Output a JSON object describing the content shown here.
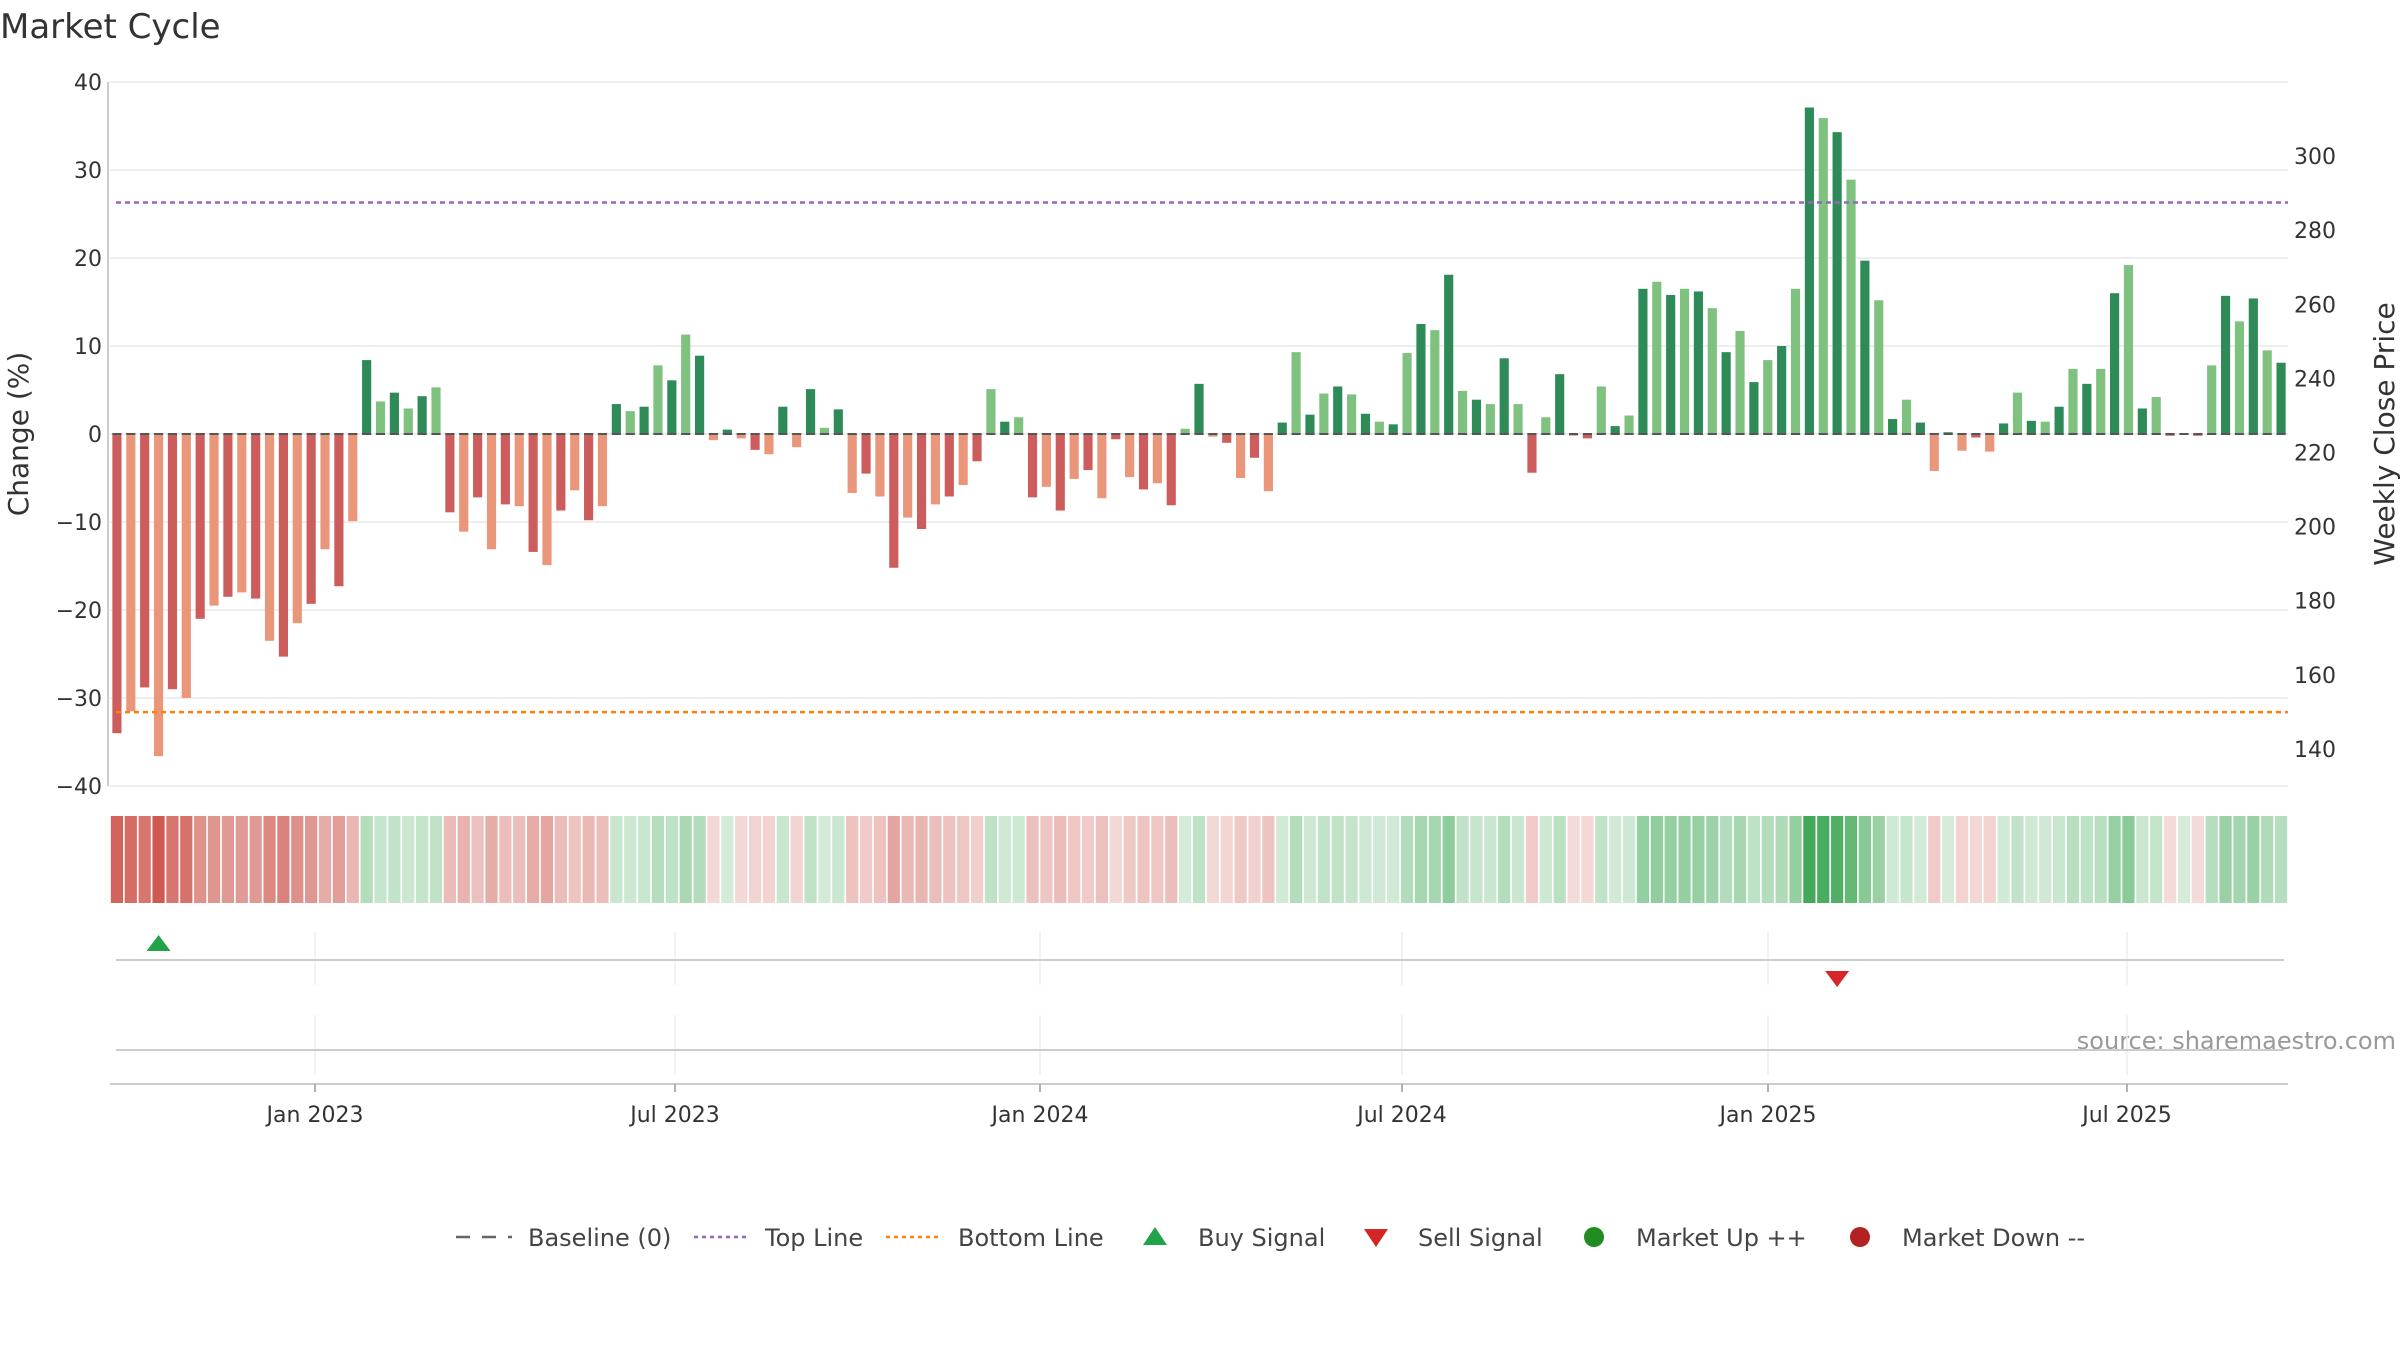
{
  "chart_data": {
    "type": "bar",
    "title": "Market Cycle",
    "ylabel": "Change (%)",
    "y2label": "Weekly Close Price",
    "ylim": [
      -40,
      40
    ],
    "y2lim": [
      130,
      320
    ],
    "yticks": [
      "40",
      "30",
      "20",
      "10",
      "0",
      "−10",
      "−20",
      "−30",
      "−40"
    ],
    "y2ticks": [
      "300",
      "280",
      "260",
      "240",
      "220",
      "200",
      "180",
      "160",
      "140"
    ],
    "xticks": [
      "Jan 2023",
      "Jul 2023",
      "Jan 2024",
      "Jul 2024",
      "Jan 2025",
      "Jul 2025"
    ],
    "top_line": 26.3,
    "bottom_line": -31.6,
    "grid": true,
    "values": [
      -34,
      -31.5,
      -28.8,
      -36.6,
      -29,
      -30,
      -21,
      -19.5,
      -18.5,
      -18,
      -18.7,
      -23.5,
      -25.3,
      -21.5,
      -19.3,
      -13.1,
      -17.3,
      -9.9,
      8.4,
      3.7,
      4.7,
      2.9,
      4.3,
      5.3,
      -8.9,
      -11.1,
      -7.2,
      -13.1,
      -8,
      -8.2,
      -13.4,
      -14.9,
      -8.7,
      -6.4,
      -9.8,
      -8.2,
      3.4,
      2.6,
      3.1,
      7.8,
      6.1,
      11.3,
      8.9,
      -0.7,
      0.5,
      -0.5,
      -1.8,
      -2.3,
      3.1,
      -1.5,
      5.1,
      0.7,
      2.8,
      -6.7,
      -4.5,
      -7.1,
      -15.2,
      -9.5,
      -10.8,
      -8,
      -7.1,
      -5.8,
      -3.1,
      5.1,
      1.4,
      1.9,
      -7.2,
      -6,
      -8.7,
      -5.1,
      -4.1,
      -7.3,
      -0.6,
      -4.9,
      -6.3,
      -5.6,
      -8.1,
      0.6,
      5.7,
      -0.3,
      -1,
      -5,
      -2.7,
      -6.5,
      1.3,
      9.3,
      2.2,
      4.6,
      5.4,
      4.5,
      2.3,
      1.4,
      1.1,
      9.2,
      12.5,
      11.8,
      18.1,
      4.9,
      3.9,
      3.4,
      8.6,
      3.4,
      -4.4,
      1.9,
      6.8,
      -0.2,
      -0.5,
      5.4,
      0.9,
      2.1,
      16.5,
      17.3,
      15.8,
      16.5,
      16.2,
      14.3,
      9.3,
      11.7,
      5.9,
      8.4,
      10,
      16.5,
      37.1,
      35.9,
      34.3,
      28.9,
      19.7,
      15.2,
      1.7,
      3.9,
      1.3,
      -4.2,
      0.2,
      -1.9,
      -0.4,
      -2,
      1.2,
      4.7,
      1.5,
      1.4,
      3.1,
      7.4,
      5.7,
      7.4,
      16,
      19.2,
      2.9,
      4.2,
      -0.2,
      0,
      -0.2,
      7.8,
      15.7,
      12.8,
      15.4,
      9.5,
      8.1
    ],
    "series": [
      {
        "name": "Baseline (0)",
        "color": "#666666"
      },
      {
        "name": "Top Line",
        "color": "#9467bd"
      },
      {
        "name": "Bottom Line",
        "color": "#ff7f0e"
      },
      {
        "name": "Buy Signal",
        "color": "#22a34a"
      },
      {
        "name": "Sell Signal",
        "color": "#d62728"
      },
      {
        "name": "Market Up ++",
        "color": "#228b22"
      },
      {
        "name": "Market Down --",
        "color": "#b22222"
      }
    ],
    "buy_signals": [
      3
    ],
    "sell_signals": [
      124
    ],
    "legend_position": "bottom"
  },
  "source": "source: sharemaestro.com",
  "colors": {
    "strong_up": "#2e8b57",
    "weak_up": "#7fc17f",
    "strong_down": "#cd5c5c",
    "weak_down": "#e9967a",
    "grid": "#e8e8e8",
    "axis": "#cccccc"
  }
}
